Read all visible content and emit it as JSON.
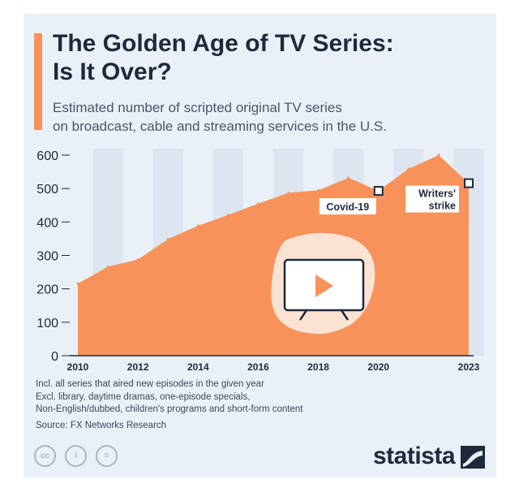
{
  "title_line1": "The Golden Age of TV Series:",
  "title_line2": "Is It Over?",
  "subtitle_line1": "Estimated number of scripted original TV series",
  "subtitle_line2": "on broadcast, cable and streaming services in the U.S.",
  "notes": [
    "Incl. all series that aired new episodes in the given year",
    "Excl. library, daytime dramas, one-episode specials,",
    "Non-English/dubbed, children's programs and short-form content"
  ],
  "source": "Source: FX Networks Research",
  "license_icons": [
    "cc-icon",
    "attribution-icon",
    "no-derivatives-icon"
  ],
  "license_labels": [
    "cc",
    "i",
    "="
  ],
  "logo": "statista",
  "colors": {
    "area": "#f7935a",
    "accent": "#f7935a",
    "title": "#1e2a3b",
    "background": "#eaf0f8",
    "stripe": "#dde5f1"
  },
  "chart_data": {
    "type": "area",
    "title": "The Golden Age of TV Series: Is It Over?",
    "x": [
      2010,
      2011,
      2012,
      2013,
      2014,
      2015,
      2016,
      2017,
      2018,
      2019,
      2020,
      2021,
      2022,
      2023
    ],
    "values": [
      216,
      266,
      288,
      349,
      389,
      421,
      455,
      487,
      495,
      532,
      493,
      559,
      600,
      516
    ],
    "xticks": [
      "2010",
      "2012",
      "2014",
      "2016",
      "2018",
      "2020",
      "2023"
    ],
    "xtick_values": [
      2010,
      2012,
      2014,
      2016,
      2018,
      2020,
      2023
    ],
    "yticks": [
      0,
      100,
      200,
      300,
      400,
      500,
      600
    ],
    "ylim": [
      0,
      600
    ],
    "xlim": [
      2010,
      2023
    ],
    "grid": "alternating-column-bands",
    "annotations": [
      {
        "label": "Covid-19",
        "x": 2020,
        "y": 493
      },
      {
        "label_lines": [
          "Writers'",
          "strike"
        ],
        "x": 2023,
        "y": 516
      }
    ],
    "center_icon": "tv-play-icon"
  }
}
